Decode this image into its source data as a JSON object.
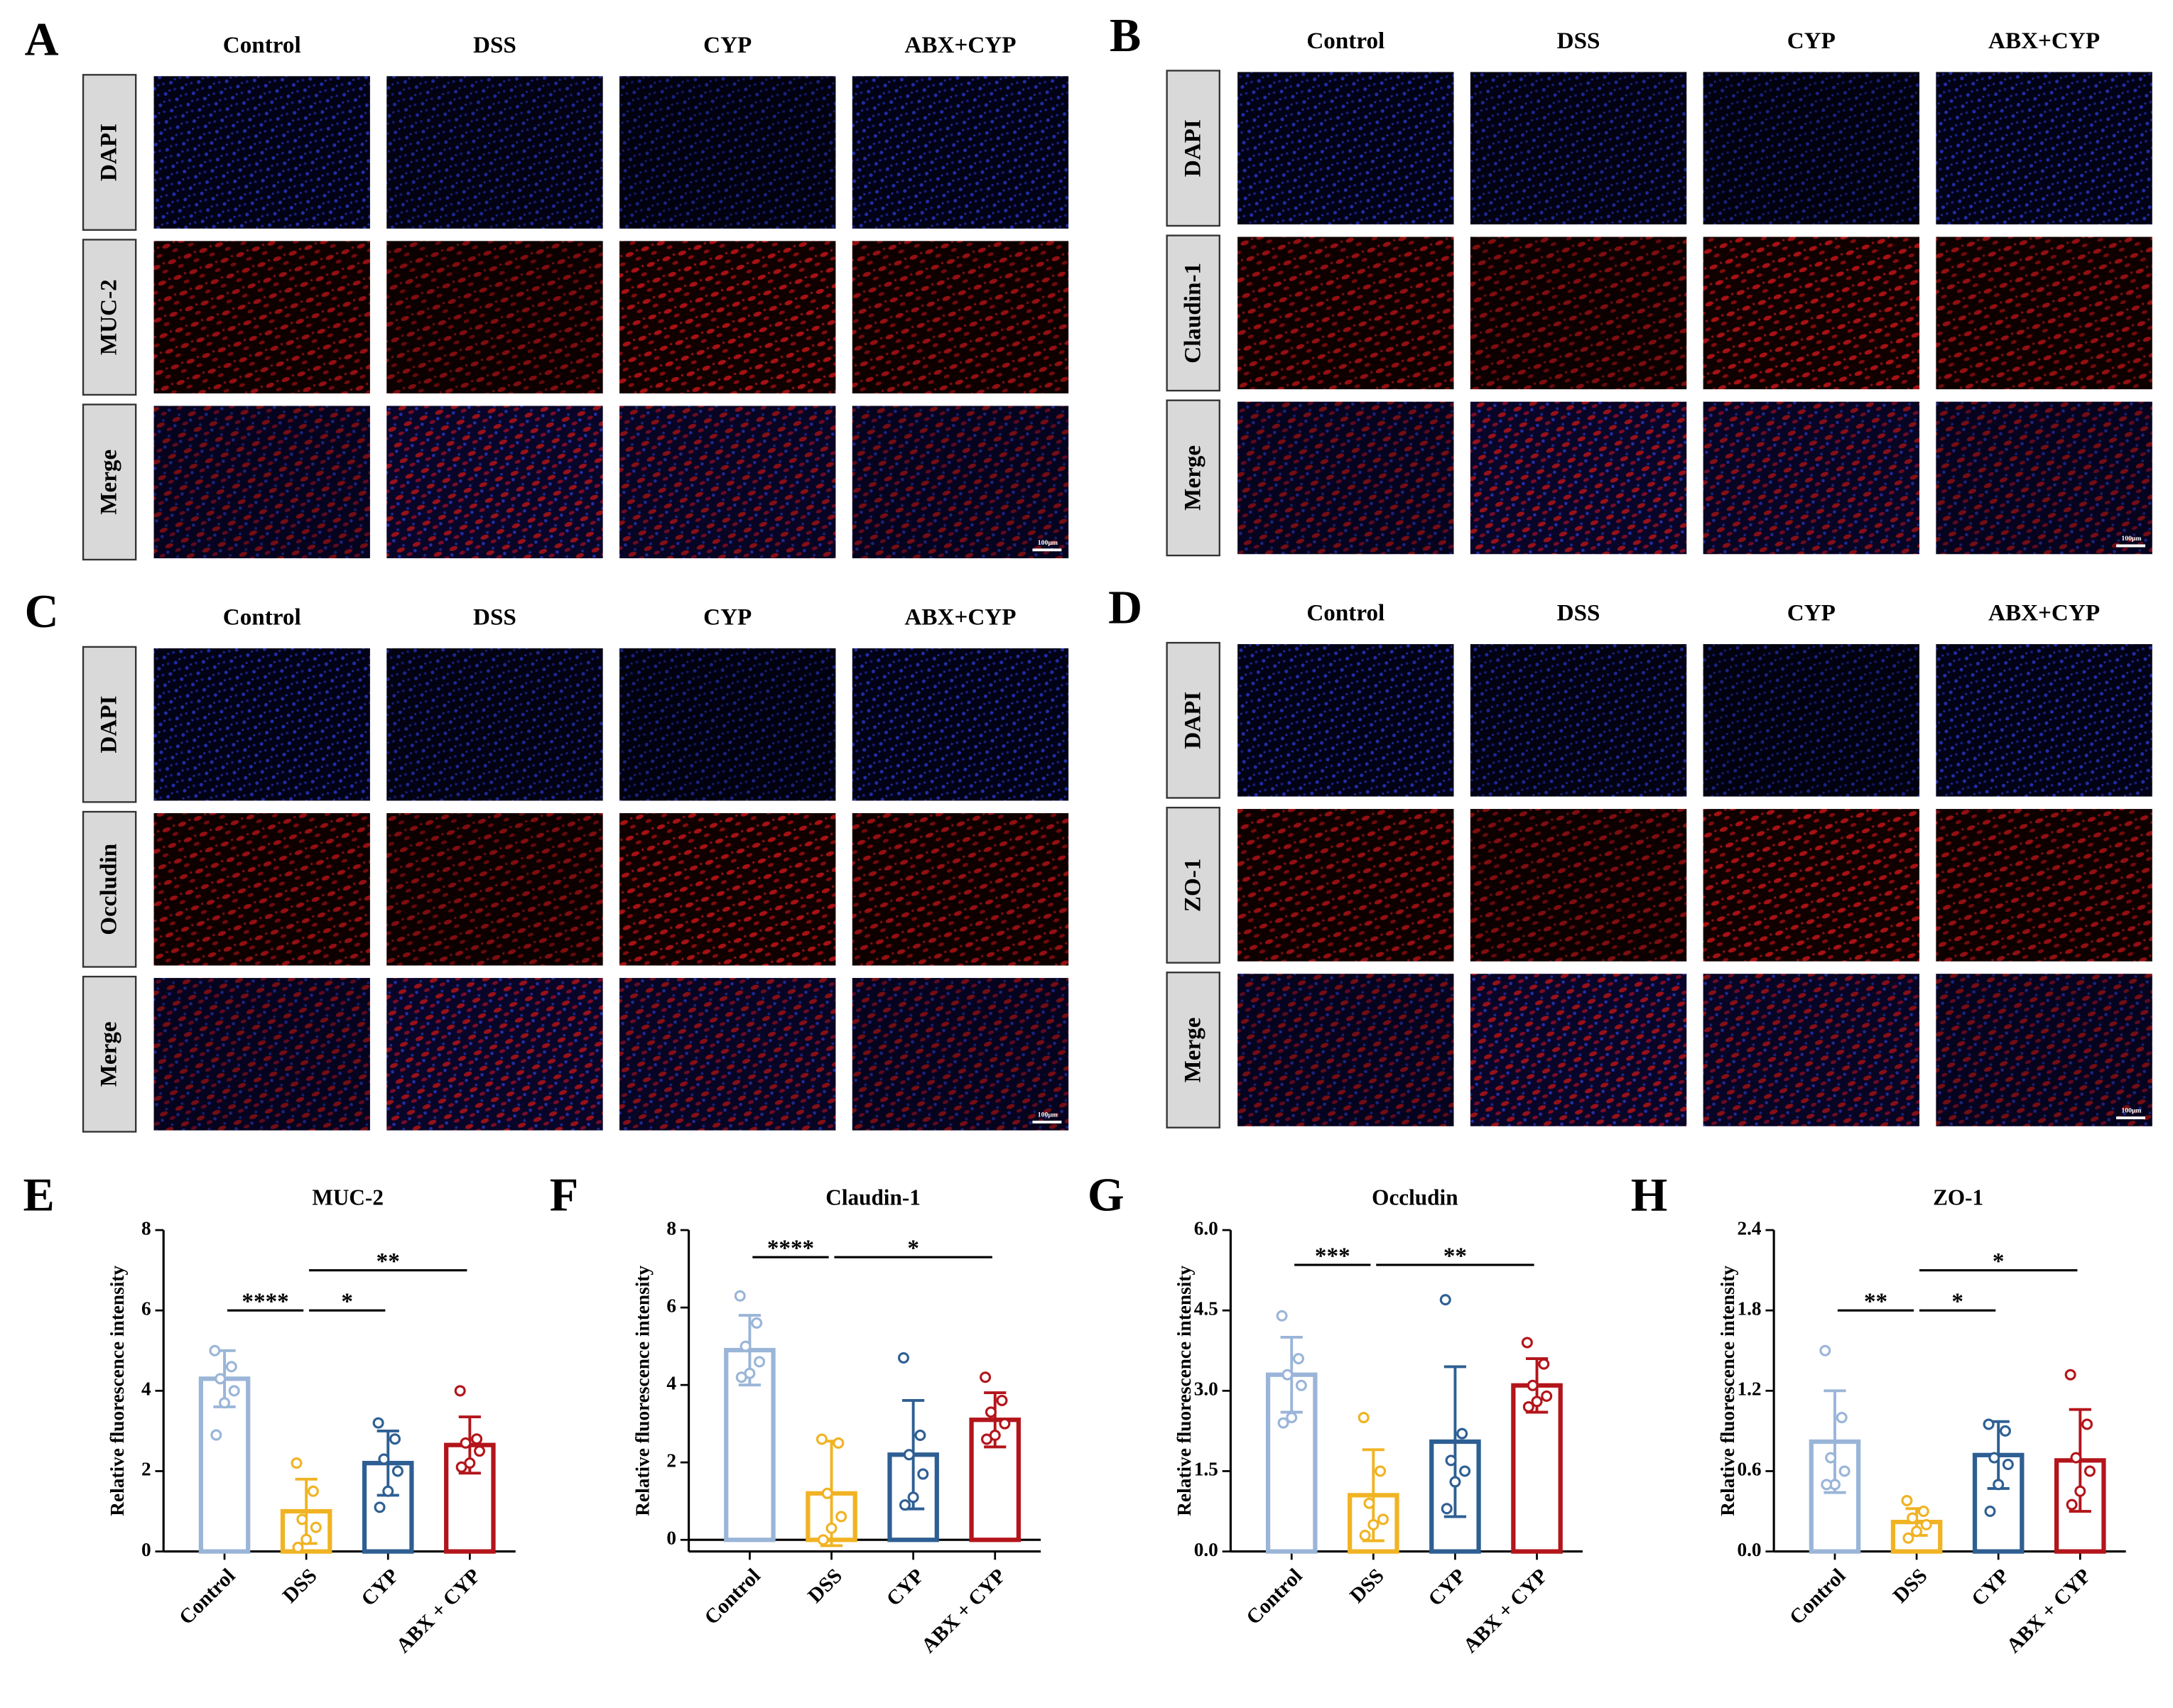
{
  "panels": [
    {
      "letter": "A",
      "columns": [
        "Control",
        "DSS",
        "CYP",
        "ABX+CYP"
      ],
      "rows": [
        "DAPI",
        "MUC-2",
        "Merge"
      ],
      "scale_bar": "100μm"
    },
    {
      "letter": "B",
      "columns": [
        "Control",
        "DSS",
        "CYP",
        "ABX+CYP"
      ],
      "rows": [
        "DAPI",
        "Claudin-1",
        "Merge"
      ],
      "scale_bar": "100μm"
    },
    {
      "letter": "C",
      "columns": [
        "Control",
        "DSS",
        "CYP",
        "ABX+CYP"
      ],
      "rows": [
        "DAPI",
        "Occludin",
        "Merge"
      ],
      "scale_bar": "100μm"
    },
    {
      "letter": "D",
      "columns": [
        "Control",
        "DSS",
        "CYP",
        "ABX+CYP"
      ],
      "rows": [
        "DAPI",
        "ZO-1",
        "Merge"
      ],
      "scale_bar": "100μm"
    }
  ],
  "chart_data": [
    {
      "type": "bar",
      "panel": "E",
      "title": "MUC-2",
      "y_label": "Relative fluorescence intensity",
      "categories": [
        "Control",
        "DSS",
        "CYP",
        "ABX + CYP"
      ],
      "colors": [
        "#9ab5d8",
        "#f0b323",
        "#2e5f93",
        "#b3151b"
      ],
      "values": [
        4.3,
        1.0,
        2.2,
        2.65
      ],
      "errors": [
        0.7,
        0.8,
        0.8,
        0.7
      ],
      "points": [
        [
          5.0,
          4.6,
          4.3,
          4.0,
          3.7,
          2.9
        ],
        [
          2.2,
          1.5,
          0.8,
          0.6,
          0.3,
          0.1
        ],
        [
          3.2,
          2.8,
          2.3,
          2.0,
          1.5,
          1.1
        ],
        [
          4.0,
          2.8,
          2.7,
          2.5,
          2.2,
          2.1
        ]
      ],
      "ylim": [
        0,
        8
      ],
      "yticks": [
        0,
        2,
        4,
        6,
        8
      ],
      "annotations": [
        {
          "text": "****",
          "between": [
            0,
            1
          ],
          "y": 6.0
        },
        {
          "text": "*",
          "between": [
            1,
            2
          ],
          "y": 6.0
        },
        {
          "text": "**",
          "between": [
            1,
            3
          ],
          "y": 7.0
        }
      ]
    },
    {
      "type": "bar",
      "panel": "F",
      "title": "Claudin-1",
      "y_label": "Relative fluorescence intensity",
      "categories": [
        "Control",
        "DSS",
        "CYP",
        "ABX + CYP"
      ],
      "colors": [
        "#9ab5d8",
        "#f0b323",
        "#2e5f93",
        "#b3151b"
      ],
      "values": [
        4.9,
        1.2,
        2.2,
        3.1
      ],
      "errors": [
        0.9,
        1.35,
        1.4,
        0.7
      ],
      "points": [
        [
          6.3,
          5.6,
          5.0,
          4.6,
          4.3,
          4.2
        ],
        [
          2.6,
          2.5,
          1.2,
          0.6,
          0.3,
          0.0
        ],
        [
          4.7,
          2.7,
          2.2,
          1.7,
          1.1,
          0.9
        ],
        [
          4.2,
          3.6,
          3.3,
          3.0,
          2.7,
          2.6
        ]
      ],
      "ylim": [
        -0.3,
        8
      ],
      "yticks": [
        0,
        2,
        4,
        6,
        8
      ],
      "annotations": [
        {
          "text": "****",
          "between": [
            0,
            1
          ],
          "y": 7.3
        },
        {
          "text": "*",
          "between": [
            1,
            3
          ],
          "y": 7.3
        }
      ]
    },
    {
      "type": "bar",
      "panel": "G",
      "title": "Occludin",
      "y_label": "Relative fluorescence intensity",
      "categories": [
        "Control",
        "DSS",
        "CYP",
        "ABX + CYP"
      ],
      "colors": [
        "#9ab5d8",
        "#f0b323",
        "#2e5f93",
        "#b3151b"
      ],
      "values": [
        3.3,
        1.05,
        2.05,
        3.1
      ],
      "errors": [
        0.7,
        0.85,
        1.4,
        0.5
      ],
      "points": [
        [
          4.4,
          3.6,
          3.3,
          3.1,
          2.5,
          2.4
        ],
        [
          2.5,
          1.5,
          0.9,
          0.6,
          0.5,
          0.3
        ],
        [
          4.7,
          2.2,
          1.7,
          1.5,
          1.3,
          0.8
        ],
        [
          3.9,
          3.5,
          3.1,
          2.9,
          2.8,
          2.7
        ]
      ],
      "ylim": [
        0,
        6
      ],
      "yticks": [
        {
          "value": 0,
          "label": "0.0"
        },
        {
          "value": 1.5,
          "label": "1.5"
        },
        {
          "value": 3,
          "label": "3.0"
        },
        {
          "value": 4.5,
          "label": "4.5"
        },
        {
          "value": 6,
          "label": "6.0"
        }
      ],
      "annotations": [
        {
          "text": "***",
          "between": [
            0,
            1
          ],
          "y": 5.35
        },
        {
          "text": "**",
          "between": [
            1,
            3
          ],
          "y": 5.35
        }
      ]
    },
    {
      "type": "bar",
      "panel": "H",
      "title": "ZO-1",
      "y_label": "Relative fluorescence intensity",
      "categories": [
        "Control",
        "DSS",
        "CYP",
        "ABX + CYP"
      ],
      "colors": [
        "#9ab5d8",
        "#f0b323",
        "#2e5f93",
        "#b3151b"
      ],
      "values": [
        0.82,
        0.22,
        0.72,
        0.68
      ],
      "errors": [
        0.38,
        0.1,
        0.25,
        0.38
      ],
      "points": [
        [
          1.5,
          1.0,
          0.7,
          0.6,
          0.5,
          0.5
        ],
        [
          0.38,
          0.3,
          0.25,
          0.2,
          0.15,
          0.1
        ],
        [
          0.95,
          0.9,
          0.7,
          0.65,
          0.5,
          0.3
        ],
        [
          1.32,
          0.95,
          0.7,
          0.6,
          0.45,
          0.35
        ]
      ],
      "ylim": [
        0,
        2.4
      ],
      "yticks": [
        {
          "value": 0,
          "label": "0.0"
        },
        {
          "value": 0.6,
          "label": "0.6"
        },
        {
          "value": 1.2,
          "label": "1.2"
        },
        {
          "value": 1.8,
          "label": "1.8"
        },
        {
          "value": 2.4,
          "label": "2.4"
        }
      ],
      "annotations": [
        {
          "text": "**",
          "between": [
            0,
            1
          ],
          "y": 1.8
        },
        {
          "text": "*",
          "between": [
            1,
            2
          ],
          "y": 1.8
        },
        {
          "text": "*",
          "between": [
            1,
            3
          ],
          "y": 2.1
        }
      ]
    }
  ]
}
